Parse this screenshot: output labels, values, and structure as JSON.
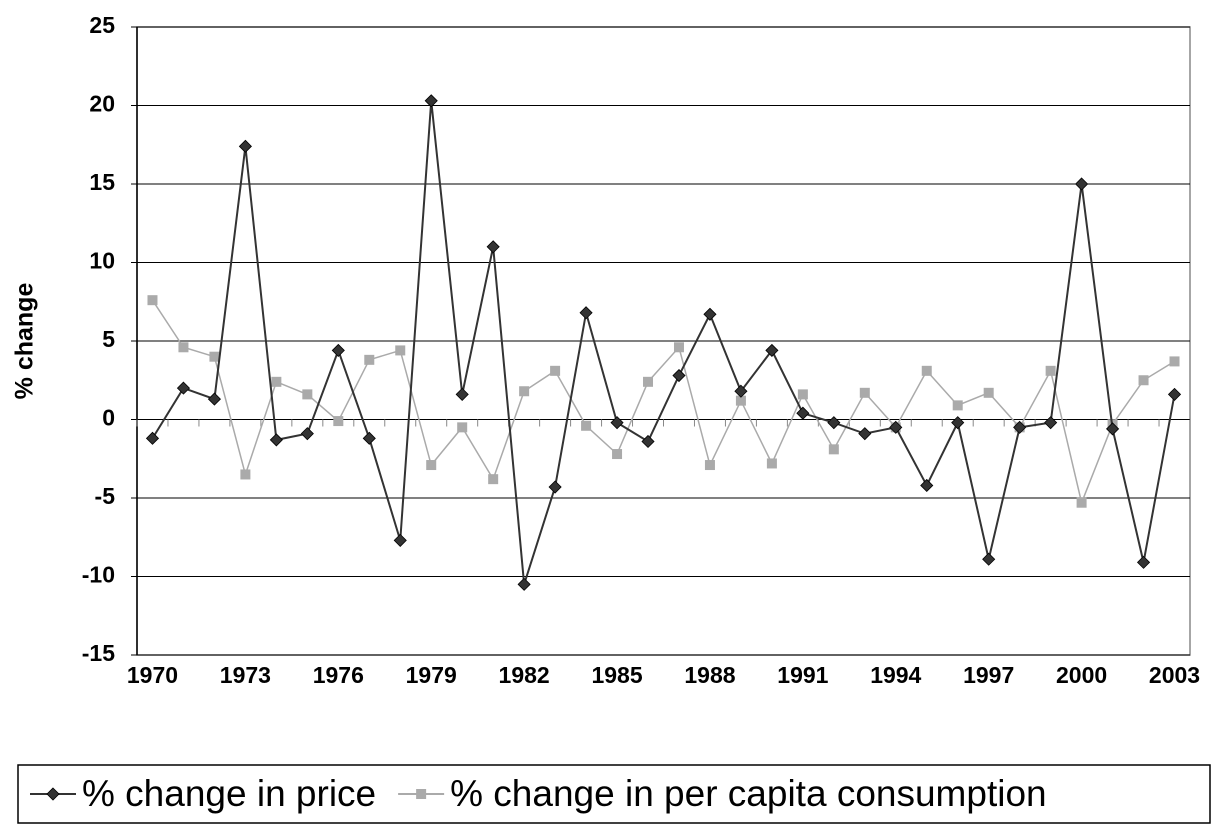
{
  "chart_data": {
    "type": "line",
    "y_label": "% change",
    "categories": [
      "1970",
      null,
      null,
      "1973",
      null,
      null,
      "1976",
      null,
      null,
      "1979",
      null,
      null,
      "1982",
      null,
      null,
      "1985",
      null,
      null,
      "1988",
      null,
      null,
      "1991",
      null,
      null,
      "1994",
      null,
      null,
      "1997",
      null,
      null,
      "2000",
      null,
      null,
      "2003"
    ],
    "series": [
      {
        "name": "% change in price",
        "color": "#333333",
        "marker": "diamond",
        "values": [
          -1.2,
          2.0,
          1.3,
          17.4,
          -1.3,
          -0.9,
          4.4,
          -1.2,
          -7.7,
          20.3,
          1.6,
          11.0,
          -10.5,
          -4.3,
          6.8,
          -0.2,
          -1.4,
          2.8,
          6.7,
          1.8,
          4.4,
          0.4,
          -0.2,
          -0.9,
          -0.5,
          -4.2,
          -0.2,
          -8.9,
          -0.5,
          -0.2,
          15.0,
          -0.6,
          -9.1,
          1.6
        ]
      },
      {
        "name": "% change in per capita consumption",
        "color": "#aaaaaa",
        "marker": "square",
        "values": [
          7.6,
          4.6,
          4.0,
          -3.5,
          2.4,
          1.6,
          -0.1,
          3.8,
          4.4,
          -2.9,
          -0.5,
          -3.8,
          1.8,
          3.1,
          -0.4,
          -2.2,
          2.4,
          4.6,
          -2.9,
          1.2,
          -2.8,
          1.6,
          -1.9,
          1.7,
          -0.5,
          3.1,
          0.9,
          1.7,
          -0.5,
          3.1,
          -5.3,
          -0.3,
          2.5,
          3.7
        ]
      }
    ],
    "ylim": [
      -15,
      25
    ],
    "yticks": [
      -15,
      -10,
      -5,
      0,
      5,
      10,
      15,
      20,
      25
    ],
    "grid": true,
    "legend": "bottom"
  }
}
